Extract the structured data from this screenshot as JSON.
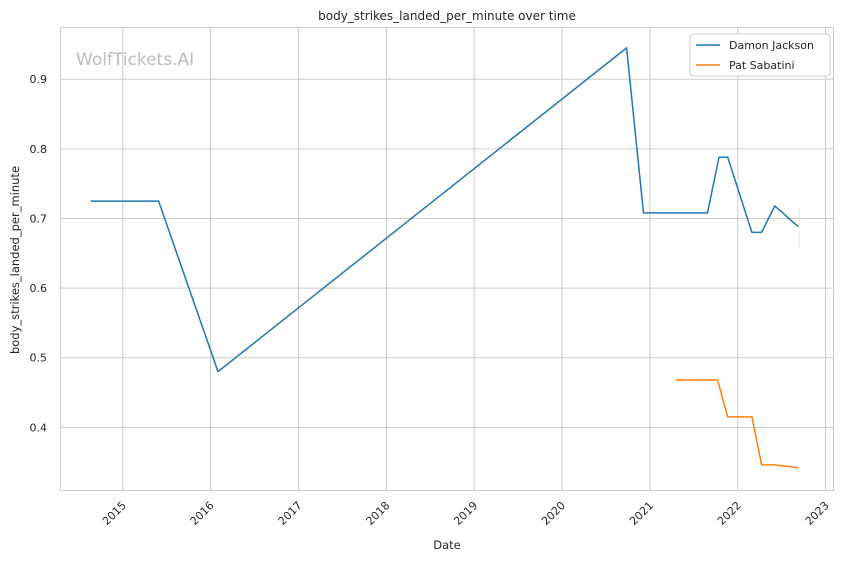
{
  "chart_data": {
    "type": "line",
    "title": "body_strikes_landed_per_minute over time",
    "xlabel": "Date",
    "ylabel": "body_strikes_landed_per_minute",
    "watermark": "WolfTickets.AI",
    "x_ticks": [
      "2015",
      "2016",
      "2017",
      "2018",
      "2019",
      "2020",
      "2021",
      "2022",
      "2023"
    ],
    "y_ticks": [
      "0.4",
      "0.5",
      "0.6",
      "0.7",
      "0.8",
      "0.9"
    ],
    "xlim": [
      "2014-04-15",
      "2023-02-01"
    ],
    "ylim": [
      0.31,
      0.975
    ],
    "grid": true,
    "legend_position": "top-right",
    "series": [
      {
        "name": "Damon Jackson",
        "color": "#1f77b4",
        "points": [
          [
            "2014-08-20",
            0.725
          ],
          [
            "2015-05-30",
            0.725
          ],
          [
            "2016-02-01",
            0.48
          ],
          [
            "2020-09-26",
            0.945
          ],
          [
            "2020-12-05",
            0.708
          ],
          [
            "2021-08-28",
            0.708
          ],
          [
            "2021-10-15",
            0.788
          ],
          [
            "2021-11-20",
            0.788
          ],
          [
            "2022-03-01",
            0.68
          ],
          [
            "2022-04-10",
            0.68
          ],
          [
            "2022-06-04",
            0.718
          ],
          [
            "2022-09-10",
            0.688
          ]
        ]
      },
      {
        "name": "Pat Sabatini",
        "color": "#ff7f0e",
        "points": [
          [
            "2021-04-17",
            0.468
          ],
          [
            "2021-10-09",
            0.468
          ],
          [
            "2021-11-20",
            0.415
          ],
          [
            "2022-03-01",
            0.415
          ],
          [
            "2022-04-10",
            0.346
          ],
          [
            "2022-06-04",
            0.346
          ],
          [
            "2022-09-10",
            0.342
          ]
        ]
      }
    ]
  }
}
